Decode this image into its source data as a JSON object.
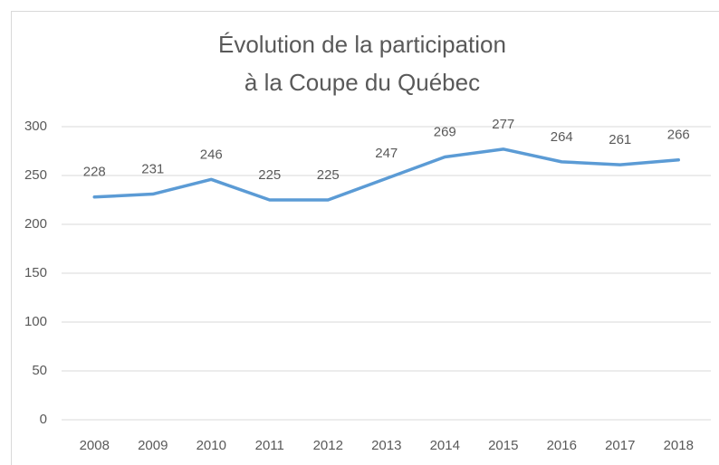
{
  "chart_data": {
    "type": "line",
    "title": [
      "Évolution de la participation",
      "à la Coupe du Québec"
    ],
    "categories": [
      "2008",
      "2009",
      "2010",
      "2011",
      "2012",
      "2013",
      "2014",
      "2015",
      "2016",
      "2017",
      "2018"
    ],
    "series": [
      {
        "color": "#5b9bd5",
        "values": [
          228,
          231,
          246,
          225,
          225,
          247,
          269,
          277,
          264,
          261,
          266
        ]
      }
    ],
    "ylim": [
      0,
      300
    ],
    "yticks": [
      0,
      50,
      100,
      150,
      200,
      250,
      300
    ],
    "grid": true
  }
}
